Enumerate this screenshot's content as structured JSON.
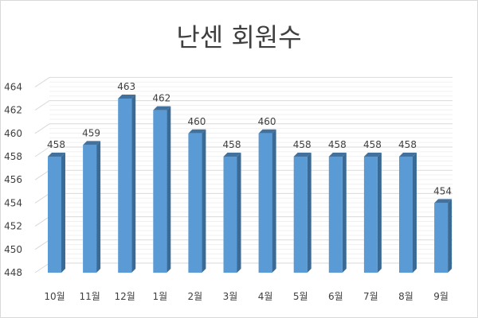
{
  "chart_data": {
    "type": "bar",
    "title": "난센 회원수",
    "categories": [
      "10월",
      "11월",
      "12월",
      "1월",
      "2월",
      "3월",
      "4월",
      "5월",
      "6월",
      "7월",
      "8월",
      "9월"
    ],
    "values": [
      458,
      459,
      463,
      462,
      460,
      458,
      460,
      458,
      458,
      458,
      458,
      454
    ],
    "ylim": [
      448,
      464
    ],
    "yticks": [
      448,
      450,
      452,
      454,
      456,
      458,
      460,
      462,
      464
    ],
    "grid": true,
    "data_labels": true,
    "style": "3d-column",
    "colors": {
      "bar_front": "#5b9bd5",
      "bar_side": "#3a6a96",
      "bar_top": "#41719c",
      "grid": "#d9d9d9"
    }
  }
}
